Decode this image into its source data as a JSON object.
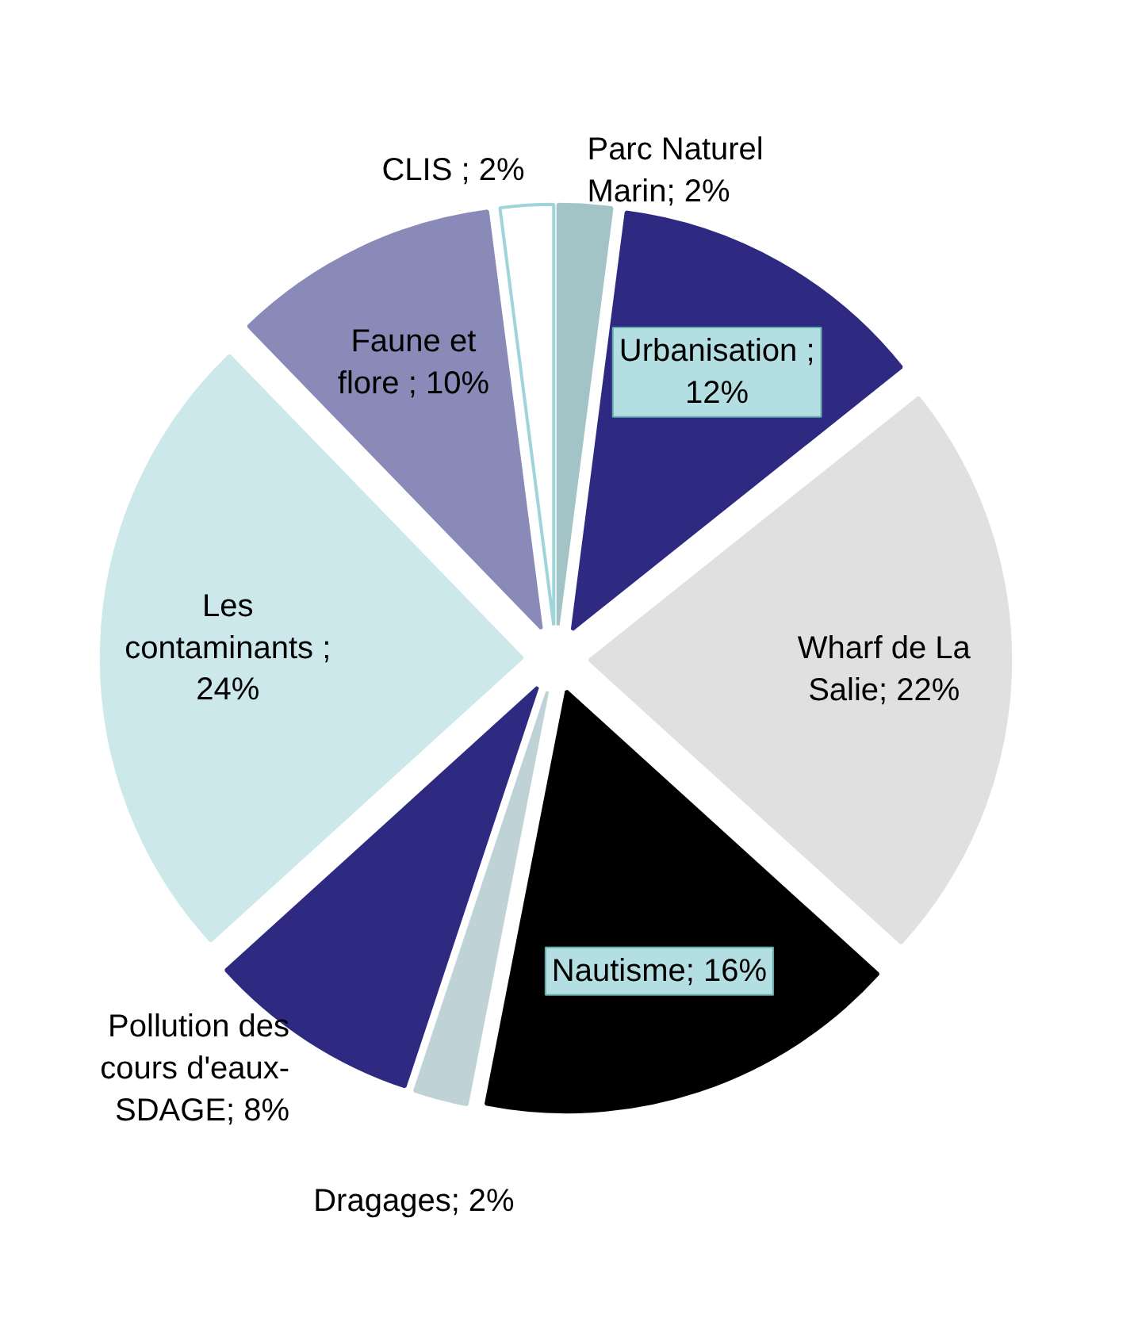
{
  "chart_data": {
    "type": "pie",
    "categories": [
      "Parc Naturel Marin",
      "Urbanisation",
      "Wharf de La Salie",
      "Nautisme",
      "Dragages",
      "Pollution des cours d'eaux-SDAGE",
      "Les contaminants",
      "Faune et flore",
      "CLIS"
    ],
    "values": [
      2,
      12,
      22,
      16,
      2,
      8,
      24,
      10,
      2
    ],
    "colors": [
      "#a3c4c6",
      "#2e2a82",
      "#e0e0e0",
      "#000000",
      "#bfd3d6",
      "#2e2a82",
      "#cce8ea",
      "#8a8ab8",
      "#ffffff"
    ],
    "value_labels": [
      "; 2%",
      " ; 12%",
      "; 22%",
      "; 16%",
      "; 2%",
      "; 8%",
      " ; 24%",
      " ; 10%",
      " ; 2%"
    ],
    "legend": false
  }
}
